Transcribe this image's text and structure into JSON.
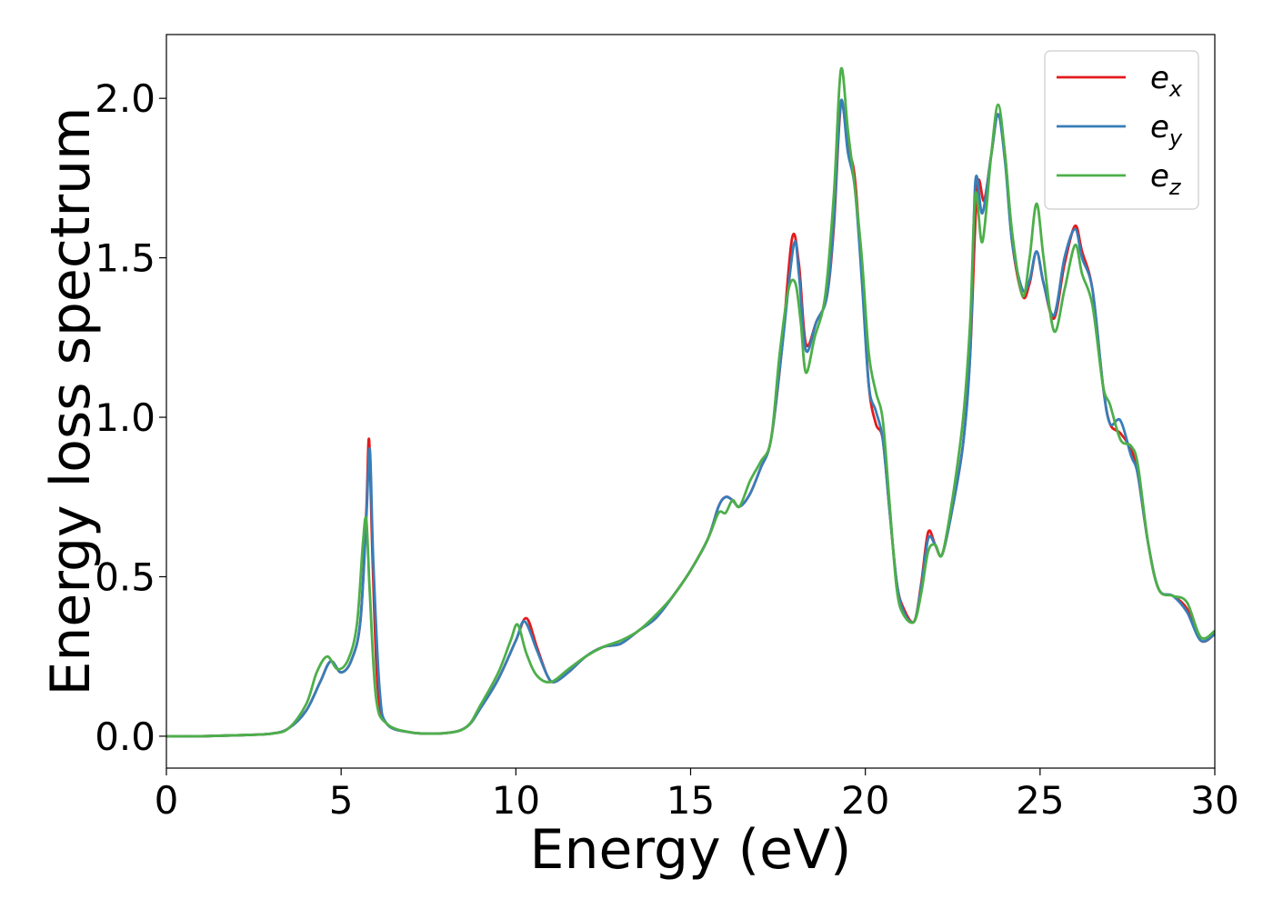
{
  "chart_data": {
    "type": "line",
    "xlabel": "Energy (eV)",
    "ylabel": "Energy loss spectrum",
    "xlim": [
      0,
      30
    ],
    "ylim": [
      -0.1,
      2.2
    ],
    "xticks": [
      0,
      5,
      10,
      15,
      20,
      25,
      30
    ],
    "xtick_labels": [
      "0",
      "5",
      "10",
      "15",
      "20",
      "25",
      "30"
    ],
    "yticks": [
      0.0,
      0.5,
      1.0,
      1.5,
      2.0
    ],
    "ytick_labels": [
      "0.0",
      "0.5",
      "1.0",
      "1.5",
      "2.0"
    ],
    "grid": false,
    "legend_position": "top-right",
    "series": [
      {
        "name": "e_x",
        "label_base": "e",
        "label_sub": "x",
        "color": "#e41a1c",
        "points": [
          [
            0,
            0.0
          ],
          [
            1,
            0.0
          ],
          [
            2,
            0.003
          ],
          [
            3,
            0.008
          ],
          [
            3.5,
            0.025
          ],
          [
            4,
            0.08
          ],
          [
            4.4,
            0.17
          ],
          [
            4.7,
            0.235
          ],
          [
            5.0,
            0.2
          ],
          [
            5.3,
            0.24
          ],
          [
            5.55,
            0.36
          ],
          [
            5.72,
            0.7
          ],
          [
            5.8,
            0.93
          ],
          [
            5.9,
            0.55
          ],
          [
            6.05,
            0.15
          ],
          [
            6.3,
            0.04
          ],
          [
            7,
            0.012
          ],
          [
            8,
            0.01
          ],
          [
            8.6,
            0.03
          ],
          [
            9.0,
            0.09
          ],
          [
            9.5,
            0.18
          ],
          [
            10.0,
            0.3
          ],
          [
            10.3,
            0.37
          ],
          [
            10.6,
            0.28
          ],
          [
            10.9,
            0.19
          ],
          [
            11.1,
            0.17
          ],
          [
            11.5,
            0.2
          ],
          [
            12.0,
            0.25
          ],
          [
            12.5,
            0.28
          ],
          [
            13.0,
            0.29
          ],
          [
            13.5,
            0.33
          ],
          [
            14.0,
            0.37
          ],
          [
            14.5,
            0.44
          ],
          [
            15.0,
            0.52
          ],
          [
            15.5,
            0.62
          ],
          [
            15.8,
            0.72
          ],
          [
            16.0,
            0.75
          ],
          [
            16.2,
            0.74
          ],
          [
            16.4,
            0.72
          ],
          [
            16.7,
            0.76
          ],
          [
            17.0,
            0.84
          ],
          [
            17.3,
            0.93
          ],
          [
            17.6,
            1.2
          ],
          [
            17.9,
            1.56
          ],
          [
            18.1,
            1.48
          ],
          [
            18.3,
            1.23
          ],
          [
            18.6,
            1.3
          ],
          [
            18.9,
            1.38
          ],
          [
            19.1,
            1.6
          ],
          [
            19.3,
            1.98
          ],
          [
            19.5,
            1.85
          ],
          [
            19.7,
            1.75
          ],
          [
            19.9,
            1.45
          ],
          [
            20.1,
            1.1
          ],
          [
            20.3,
            0.98
          ],
          [
            20.5,
            0.93
          ],
          [
            20.7,
            0.7
          ],
          [
            20.9,
            0.48
          ],
          [
            21.1,
            0.4
          ],
          [
            21.4,
            0.36
          ],
          [
            21.6,
            0.48
          ],
          [
            21.8,
            0.64
          ],
          [
            22.0,
            0.6
          ],
          [
            22.2,
            0.57
          ],
          [
            22.5,
            0.72
          ],
          [
            22.8,
            0.92
          ],
          [
            23.0,
            1.2
          ],
          [
            23.2,
            1.72
          ],
          [
            23.4,
            1.68
          ],
          [
            23.6,
            1.82
          ],
          [
            23.8,
            1.95
          ],
          [
            24.0,
            1.82
          ],
          [
            24.2,
            1.55
          ],
          [
            24.5,
            1.38
          ],
          [
            24.7,
            1.42
          ],
          [
            24.9,
            1.52
          ],
          [
            25.1,
            1.42
          ],
          [
            25.4,
            1.31
          ],
          [
            25.7,
            1.48
          ],
          [
            26.0,
            1.6
          ],
          [
            26.2,
            1.52
          ],
          [
            26.5,
            1.4
          ],
          [
            26.8,
            1.1
          ],
          [
            27.0,
            0.98
          ],
          [
            27.3,
            0.95
          ],
          [
            27.6,
            0.9
          ],
          [
            27.8,
            0.82
          ],
          [
            28.1,
            0.6
          ],
          [
            28.4,
            0.46
          ],
          [
            28.8,
            0.44
          ],
          [
            29.2,
            0.4
          ],
          [
            29.6,
            0.3
          ],
          [
            30.0,
            0.32
          ]
        ]
      },
      {
        "name": "e_y",
        "label_base": "e",
        "label_sub": "y",
        "color": "#377eb8",
        "points": [
          [
            0,
            0.0
          ],
          [
            1,
            0.0
          ],
          [
            2,
            0.003
          ],
          [
            3,
            0.008
          ],
          [
            3.5,
            0.025
          ],
          [
            4,
            0.08
          ],
          [
            4.4,
            0.17
          ],
          [
            4.7,
            0.235
          ],
          [
            5.0,
            0.2
          ],
          [
            5.3,
            0.24
          ],
          [
            5.55,
            0.36
          ],
          [
            5.72,
            0.68
          ],
          [
            5.82,
            0.9
          ],
          [
            5.92,
            0.55
          ],
          [
            6.1,
            0.15
          ],
          [
            6.3,
            0.04
          ],
          [
            7,
            0.012
          ],
          [
            8,
            0.01
          ],
          [
            8.6,
            0.03
          ],
          [
            9.0,
            0.09
          ],
          [
            9.5,
            0.18
          ],
          [
            10.0,
            0.3
          ],
          [
            10.25,
            0.36
          ],
          [
            10.6,
            0.27
          ],
          [
            10.9,
            0.19
          ],
          [
            11.1,
            0.17
          ],
          [
            11.5,
            0.2
          ],
          [
            12.0,
            0.25
          ],
          [
            12.5,
            0.28
          ],
          [
            13.0,
            0.29
          ],
          [
            13.5,
            0.33
          ],
          [
            14.0,
            0.37
          ],
          [
            14.5,
            0.44
          ],
          [
            15.0,
            0.52
          ],
          [
            15.5,
            0.62
          ],
          [
            15.8,
            0.72
          ],
          [
            16.0,
            0.75
          ],
          [
            16.2,
            0.74
          ],
          [
            16.4,
            0.72
          ],
          [
            16.7,
            0.76
          ],
          [
            17.0,
            0.84
          ],
          [
            17.3,
            0.93
          ],
          [
            17.6,
            1.2
          ],
          [
            17.95,
            1.54
          ],
          [
            18.1,
            1.45
          ],
          [
            18.3,
            1.21
          ],
          [
            18.6,
            1.3
          ],
          [
            18.9,
            1.38
          ],
          [
            19.1,
            1.62
          ],
          [
            19.3,
            1.99
          ],
          [
            19.5,
            1.83
          ],
          [
            19.7,
            1.72
          ],
          [
            19.9,
            1.43
          ],
          [
            20.1,
            1.1
          ],
          [
            20.3,
            1.02
          ],
          [
            20.5,
            0.93
          ],
          [
            20.7,
            0.7
          ],
          [
            20.9,
            0.48
          ],
          [
            21.1,
            0.39
          ],
          [
            21.4,
            0.36
          ],
          [
            21.6,
            0.47
          ],
          [
            21.8,
            0.62
          ],
          [
            22.0,
            0.6
          ],
          [
            22.2,
            0.57
          ],
          [
            22.5,
            0.72
          ],
          [
            22.8,
            0.92
          ],
          [
            23.0,
            1.2
          ],
          [
            23.15,
            1.74
          ],
          [
            23.35,
            1.64
          ],
          [
            23.6,
            1.82
          ],
          [
            23.8,
            1.95
          ],
          [
            24.0,
            1.8
          ],
          [
            24.2,
            1.55
          ],
          [
            24.5,
            1.4
          ],
          [
            24.7,
            1.43
          ],
          [
            24.9,
            1.52
          ],
          [
            25.1,
            1.42
          ],
          [
            25.4,
            1.32
          ],
          [
            25.7,
            1.5
          ],
          [
            26.0,
            1.59
          ],
          [
            26.2,
            1.5
          ],
          [
            26.5,
            1.4
          ],
          [
            26.8,
            1.1
          ],
          [
            27.0,
            0.98
          ],
          [
            27.3,
            0.99
          ],
          [
            27.6,
            0.88
          ],
          [
            27.8,
            0.82
          ],
          [
            28.1,
            0.6
          ],
          [
            28.4,
            0.46
          ],
          [
            28.8,
            0.44
          ],
          [
            29.2,
            0.39
          ],
          [
            29.6,
            0.3
          ],
          [
            30.0,
            0.32
          ]
        ]
      },
      {
        "name": "e_z",
        "label_base": "e",
        "label_sub": "z",
        "color": "#4daf4a",
        "points": [
          [
            0,
            0.0
          ],
          [
            1,
            0.0
          ],
          [
            2,
            0.003
          ],
          [
            3,
            0.008
          ],
          [
            3.5,
            0.025
          ],
          [
            4,
            0.1
          ],
          [
            4.3,
            0.2
          ],
          [
            4.6,
            0.25
          ],
          [
            4.9,
            0.21
          ],
          [
            5.2,
            0.24
          ],
          [
            5.45,
            0.35
          ],
          [
            5.62,
            0.6
          ],
          [
            5.72,
            0.68
          ],
          [
            5.82,
            0.45
          ],
          [
            6.0,
            0.12
          ],
          [
            6.3,
            0.04
          ],
          [
            7,
            0.012
          ],
          [
            8,
            0.01
          ],
          [
            8.6,
            0.03
          ],
          [
            9.0,
            0.1
          ],
          [
            9.5,
            0.2
          ],
          [
            9.85,
            0.3
          ],
          [
            10.05,
            0.35
          ],
          [
            10.3,
            0.26
          ],
          [
            10.6,
            0.19
          ],
          [
            11.0,
            0.17
          ],
          [
            11.5,
            0.21
          ],
          [
            12.0,
            0.25
          ],
          [
            12.5,
            0.28
          ],
          [
            13.0,
            0.3
          ],
          [
            13.5,
            0.33
          ],
          [
            14.0,
            0.38
          ],
          [
            14.5,
            0.44
          ],
          [
            15.0,
            0.52
          ],
          [
            15.5,
            0.62
          ],
          [
            15.8,
            0.7
          ],
          [
            16.0,
            0.7
          ],
          [
            16.2,
            0.74
          ],
          [
            16.4,
            0.72
          ],
          [
            16.7,
            0.8
          ],
          [
            17.0,
            0.86
          ],
          [
            17.3,
            0.93
          ],
          [
            17.55,
            1.2
          ],
          [
            17.8,
            1.4
          ],
          [
            18.0,
            1.42
          ],
          [
            18.15,
            1.3
          ],
          [
            18.3,
            1.14
          ],
          [
            18.55,
            1.25
          ],
          [
            18.85,
            1.38
          ],
          [
            19.1,
            1.7
          ],
          [
            19.3,
            2.09
          ],
          [
            19.5,
            1.9
          ],
          [
            19.7,
            1.72
          ],
          [
            19.9,
            1.5
          ],
          [
            20.1,
            1.2
          ],
          [
            20.3,
            1.08
          ],
          [
            20.5,
            0.99
          ],
          [
            20.7,
            0.72
          ],
          [
            20.9,
            0.46
          ],
          [
            21.1,
            0.38
          ],
          [
            21.4,
            0.36
          ],
          [
            21.6,
            0.45
          ],
          [
            21.8,
            0.58
          ],
          [
            22.0,
            0.6
          ],
          [
            22.2,
            0.57
          ],
          [
            22.5,
            0.75
          ],
          [
            22.8,
            1.0
          ],
          [
            23.0,
            1.3
          ],
          [
            23.15,
            1.7
          ],
          [
            23.35,
            1.55
          ],
          [
            23.6,
            1.82
          ],
          [
            23.8,
            1.98
          ],
          [
            24.0,
            1.82
          ],
          [
            24.2,
            1.58
          ],
          [
            24.5,
            1.38
          ],
          [
            24.7,
            1.5
          ],
          [
            24.9,
            1.67
          ],
          [
            25.1,
            1.5
          ],
          [
            25.4,
            1.27
          ],
          [
            25.7,
            1.4
          ],
          [
            26.0,
            1.54
          ],
          [
            26.2,
            1.45
          ],
          [
            26.5,
            1.35
          ],
          [
            26.8,
            1.1
          ],
          [
            27.0,
            1.04
          ],
          [
            27.3,
            0.93
          ],
          [
            27.6,
            0.91
          ],
          [
            27.8,
            0.85
          ],
          [
            28.1,
            0.6
          ],
          [
            28.4,
            0.46
          ],
          [
            28.8,
            0.44
          ],
          [
            29.2,
            0.42
          ],
          [
            29.6,
            0.31
          ],
          [
            30.0,
            0.33
          ]
        ]
      }
    ]
  }
}
